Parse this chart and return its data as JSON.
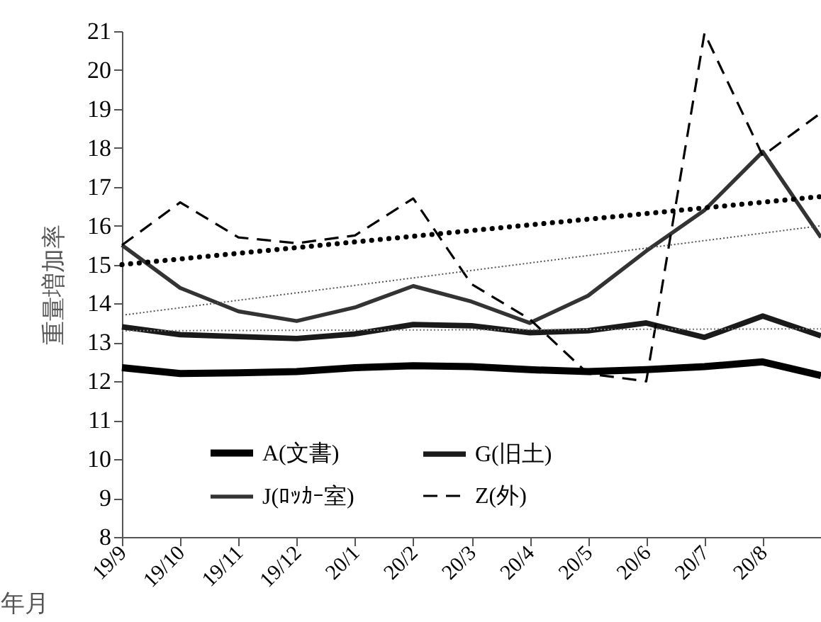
{
  "chart_data": {
    "type": "line",
    "ylabel": "重量増加率",
    "xlabel": "年月",
    "categories": [
      "19/9",
      "19/10",
      "19/11",
      "19/12",
      "20/1",
      "20/2",
      "20/3",
      "20/4",
      "20/5",
      "20/6",
      "20/7",
      "20/8",
      null
    ],
    "ylim": [
      8,
      21
    ],
    "yticks": [
      8,
      9,
      10,
      11,
      12,
      13,
      14,
      15,
      16,
      17,
      18,
      19,
      20,
      21
    ],
    "grid": false,
    "legend": "bottom",
    "marker": "none",
    "series": [
      {
        "name": "A(文書)",
        "color": "#000000",
        "line_style": "solid",
        "values": [
          12.35,
          12.2,
          12.22,
          12.25,
          12.35,
          12.4,
          12.38,
          12.3,
          12.25,
          12.3,
          12.38,
          12.5,
          12.15
        ]
      },
      {
        "name": "G(旧土)",
        "color": "#1a1a1a",
        "line_style": "solid",
        "values": [
          13.4,
          13.2,
          13.15,
          13.1,
          13.22,
          13.46,
          13.43,
          13.25,
          13.3,
          13.5,
          13.13,
          13.68,
          13.17
        ]
      },
      {
        "name": "J(ﾛｯｶｰ室)",
        "color": "#333333",
        "line_style": "solid",
        "values": [
          15.5,
          14.4,
          13.8,
          13.55,
          13.9,
          14.45,
          14.05,
          13.5,
          14.2,
          15.35,
          16.4,
          17.9,
          15.7
        ]
      },
      {
        "name": "Z(外)",
        "color": "#000000",
        "line_style": "dashed",
        "values": [
          15.5,
          16.6,
          15.7,
          15.55,
          15.75,
          16.7,
          14.5,
          13.6,
          12.2,
          12.0,
          20.95,
          17.8,
          18.9
        ]
      },
      {
        "type": "line",
        "color": "#000000",
        "line_style": "dotted",
        "values": [
          15.0,
          null,
          null,
          null,
          null,
          null,
          null,
          null,
          null,
          null,
          null,
          null,
          16.75
        ]
      },
      {
        "type": "line",
        "color": "#555555",
        "line_style": "dotted",
        "values": [
          13.7,
          null,
          null,
          null,
          null,
          null,
          null,
          null,
          null,
          null,
          null,
          null,
          16.0
        ]
      },
      {
        "type": "line",
        "color": "#777777",
        "line_style": "dotted",
        "values": [
          13.3,
          null,
          null,
          null,
          null,
          null,
          null,
          null,
          null,
          null,
          null,
          null,
          13.35
        ]
      }
    ]
  }
}
